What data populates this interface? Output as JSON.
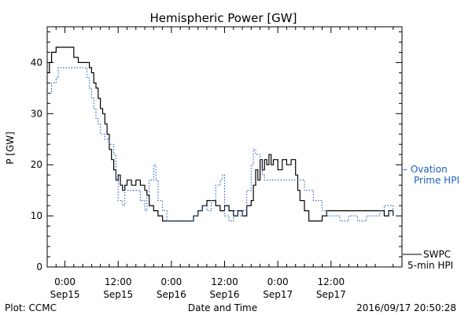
{
  "chart_data": {
    "type": "line",
    "title": "Hemispheric Power [GW]",
    "xlabel": "Date and Time",
    "ylabel": "P [GW]",
    "ylim": [
      0,
      47
    ],
    "xlim_hours": [
      -4,
      76
    ],
    "y_ticks": [
      0,
      10,
      20,
      30,
      40
    ],
    "x_ticks": [
      {
        "hour": 0,
        "time": "0:00",
        "date": "Sep15"
      },
      {
        "hour": 12,
        "time": "12:00",
        "date": "Sep15"
      },
      {
        "hour": 24,
        "time": "0:00",
        "date": "Sep16"
      },
      {
        "hour": 36,
        "time": "12:00",
        "date": "Sep16"
      },
      {
        "hour": 48,
        "time": "0:00",
        "date": "Sep17"
      },
      {
        "hour": 60,
        "time": "12:00",
        "date": "Sep17"
      }
    ],
    "grid": false,
    "legend_position": "outside-right",
    "series": [
      {
        "name": "SWPC 5-min HPI",
        "label_lines": [
          "SWPC",
          "5-min HPI"
        ],
        "color": "#000000",
        "style": "solid",
        "points": [
          [
            -4,
            38
          ],
          [
            -3.5,
            40
          ],
          [
            -3,
            42
          ],
          [
            -2,
            43
          ],
          [
            1,
            43
          ],
          [
            2,
            41
          ],
          [
            3,
            40
          ],
          [
            4,
            40
          ],
          [
            5.5,
            39
          ],
          [
            6,
            38
          ],
          [
            6.5,
            36
          ],
          [
            7,
            35
          ],
          [
            7.5,
            33
          ],
          [
            8,
            31
          ],
          [
            8.5,
            30
          ],
          [
            9,
            28
          ],
          [
            9.5,
            26
          ],
          [
            10,
            23
          ],
          [
            10.5,
            21
          ],
          [
            11,
            19
          ],
          [
            11.5,
            17
          ],
          [
            12,
            18
          ],
          [
            12.5,
            16
          ],
          [
            13,
            15
          ],
          [
            13.5,
            16
          ],
          [
            14,
            17
          ],
          [
            15,
            16
          ],
          [
            16,
            17
          ],
          [
            17,
            16
          ],
          [
            18,
            15
          ],
          [
            18.5,
            14
          ],
          [
            19,
            12
          ],
          [
            20,
            11
          ],
          [
            21,
            10
          ],
          [
            22,
            9
          ],
          [
            26,
            9
          ],
          [
            29,
            10
          ],
          [
            30,
            11
          ],
          [
            31,
            12
          ],
          [
            32,
            13
          ],
          [
            34,
            12
          ],
          [
            35,
            11
          ],
          [
            36,
            12
          ],
          [
            37,
            11
          ],
          [
            38,
            10
          ],
          [
            39,
            11
          ],
          [
            40,
            10
          ],
          [
            41,
            12
          ],
          [
            42,
            13
          ],
          [
            42.5,
            16
          ],
          [
            43,
            19
          ],
          [
            43.5,
            17
          ],
          [
            44,
            21
          ],
          [
            44.5,
            19
          ],
          [
            45,
            21
          ],
          [
            45.5,
            20
          ],
          [
            46,
            22
          ],
          [
            46.5,
            20
          ],
          [
            47,
            21
          ],
          [
            48,
            19
          ],
          [
            49,
            21
          ],
          [
            50,
            20
          ],
          [
            51,
            21
          ],
          [
            52,
            18
          ],
          [
            52.5,
            15
          ],
          [
            53,
            13
          ],
          [
            54,
            11
          ],
          [
            55,
            9
          ],
          [
            57,
            9
          ],
          [
            58,
            10
          ],
          [
            59,
            11
          ],
          [
            72,
            10
          ],
          [
            73,
            11
          ],
          [
            74,
            10
          ]
        ]
      },
      {
        "name": "Ovation Prime HPI",
        "label_lines": [
          "– Ovation",
          "Prime HPI"
        ],
        "color": "#1f5fbf",
        "style": "dotted",
        "points": [
          [
            -4,
            34
          ],
          [
            -3,
            36
          ],
          [
            -2,
            37
          ],
          [
            -1.5,
            39
          ],
          [
            4,
            39
          ],
          [
            5,
            37
          ],
          [
            5.5,
            35
          ],
          [
            6,
            33
          ],
          [
            6.5,
            31
          ],
          [
            7,
            29
          ],
          [
            7.5,
            28
          ],
          [
            8,
            26
          ],
          [
            9,
            25
          ],
          [
            10,
            24
          ],
          [
            11,
            22
          ],
          [
            11.5,
            17
          ],
          [
            12,
            13
          ],
          [
            13,
            12
          ],
          [
            13.5,
            15
          ],
          [
            16,
            15
          ],
          [
            17,
            13
          ],
          [
            18,
            11
          ],
          [
            18.5,
            14
          ],
          [
            19,
            17
          ],
          [
            20,
            20
          ],
          [
            20.5,
            17
          ],
          [
            21,
            13
          ],
          [
            22,
            11
          ],
          [
            23,
            9
          ],
          [
            28,
            9
          ],
          [
            29,
            10
          ],
          [
            30,
            11
          ],
          [
            31,
            12
          ],
          [
            32,
            11
          ],
          [
            33,
            13
          ],
          [
            34,
            16
          ],
          [
            35,
            17
          ],
          [
            35.5,
            18
          ],
          [
            36,
            10
          ],
          [
            37,
            9
          ],
          [
            38,
            11
          ],
          [
            39,
            10
          ],
          [
            40,
            11
          ],
          [
            41,
            15
          ],
          [
            42,
            20
          ],
          [
            42.5,
            23
          ],
          [
            43,
            22
          ],
          [
            44,
            21
          ],
          [
            44.5,
            18
          ],
          [
            45,
            17
          ],
          [
            53,
            17
          ],
          [
            54,
            15
          ],
          [
            56,
            13
          ],
          [
            58,
            11
          ],
          [
            59,
            10
          ],
          [
            60,
            10
          ],
          [
            62,
            9
          ],
          [
            64,
            10
          ],
          [
            66,
            9
          ],
          [
            68,
            10
          ],
          [
            70,
            10
          ],
          [
            71,
            11
          ],
          [
            72,
            12
          ],
          [
            73,
            12
          ],
          [
            74,
            10
          ]
        ]
      }
    ]
  },
  "footer": {
    "left": "Plot: CCMC",
    "right": "2016/09/17 20:50:28"
  }
}
